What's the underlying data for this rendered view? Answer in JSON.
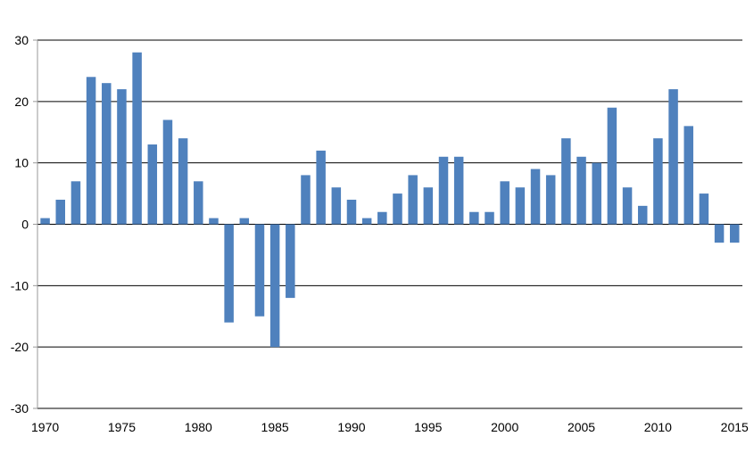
{
  "chart_data": {
    "type": "bar",
    "title": "",
    "xlabel": "",
    "ylabel": "",
    "ylim": [
      -30,
      30
    ],
    "yticks": [
      -30,
      -20,
      -10,
      0,
      10,
      20,
      30
    ],
    "xlim": [
      1970,
      2015
    ],
    "xticks": [
      1970,
      1975,
      1980,
      1985,
      1990,
      1995,
      2000,
      2005,
      2010,
      2015
    ],
    "grid": "horizontal",
    "bar_color": "#4f81bd",
    "x": [
      1970,
      1971,
      1972,
      1973,
      1974,
      1975,
      1976,
      1977,
      1978,
      1979,
      1980,
      1981,
      1982,
      1983,
      1984,
      1985,
      1986,
      1987,
      1988,
      1989,
      1990,
      1991,
      1992,
      1993,
      1994,
      1995,
      1996,
      1997,
      1998,
      1999,
      2000,
      2001,
      2002,
      2003,
      2004,
      2005,
      2006,
      2007,
      2008,
      2009,
      2010,
      2011,
      2012,
      2013,
      2014,
      2015
    ],
    "values": [
      1,
      4,
      7,
      24,
      23,
      22,
      28,
      13,
      17,
      14,
      7,
      1,
      -16,
      1,
      -15,
      -20,
      -12,
      8,
      12,
      6,
      4,
      1,
      2,
      5,
      8,
      6,
      11,
      11,
      2,
      2,
      7,
      6,
      9,
      8,
      14,
      11,
      10,
      19,
      6,
      3,
      14,
      22,
      16,
      5,
      -3,
      -3
    ]
  }
}
